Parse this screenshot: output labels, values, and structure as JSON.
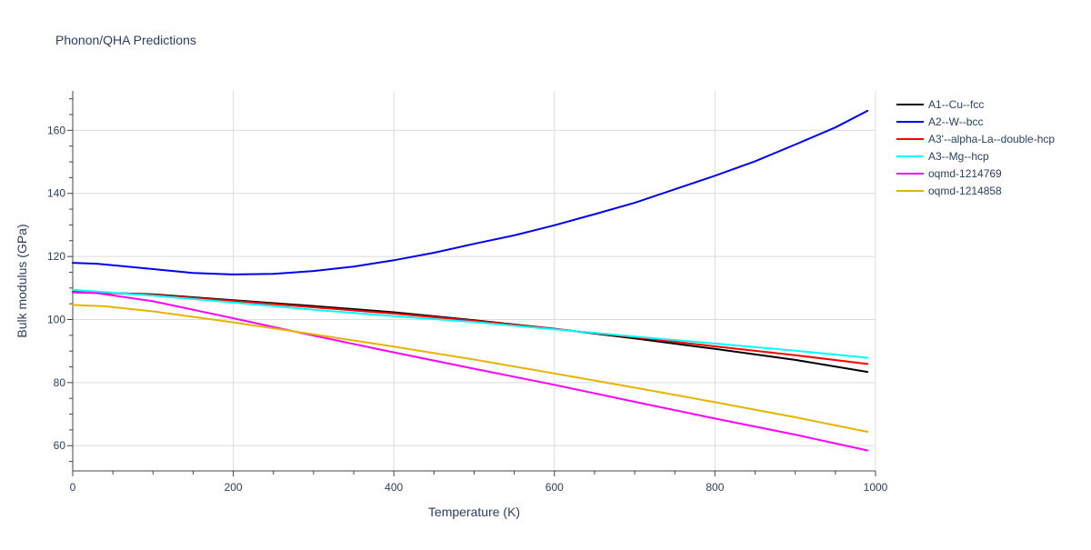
{
  "chart_data": {
    "type": "line",
    "title": "Phonon/QHA Predictions",
    "xlabel": "Temperature (K)",
    "ylabel": "Bulk modulus (GPa)",
    "xlim": [
      0,
      1000
    ],
    "ylim": [
      52,
      172.5
    ],
    "xticks": [
      0,
      200,
      400,
      600,
      800,
      1000
    ],
    "yticks": [
      60,
      80,
      100,
      120,
      140,
      160
    ],
    "grid": true,
    "legend_position": "top-right, outside plot",
    "series": [
      {
        "name": "A1--Cu--fcc",
        "color": "#000000",
        "x": [
          0,
          100,
          200,
          300,
          400,
          500,
          600,
          700,
          800,
          900,
          990
        ],
        "y": [
          108.8,
          108.0,
          106.1,
          104.3,
          102.3,
          99.8,
          97.1,
          94.0,
          90.7,
          87.2,
          83.4
        ]
      },
      {
        "name": "A2--W--bcc",
        "color": "#0000ee",
        "x": [
          0,
          30,
          100,
          150,
          200,
          250,
          300,
          350,
          400,
          450,
          500,
          550,
          600,
          650,
          700,
          750,
          800,
          850,
          900,
          950,
          990
        ],
        "y": [
          118.0,
          117.7,
          116.0,
          114.8,
          114.3,
          114.5,
          115.4,
          116.8,
          118.8,
          121.2,
          124.0,
          126.7,
          129.9,
          133.4,
          137.0,
          141.3,
          145.6,
          150.2,
          155.5,
          160.9,
          166.2
        ]
      },
      {
        "name": "A3'--alpha-La--double-hcp",
        "color": "#ff0000",
        "x": [
          0,
          100,
          200,
          300,
          400,
          500,
          600,
          700,
          800,
          900,
          990
        ],
        "y": [
          108.9,
          107.8,
          105.9,
          103.9,
          101.9,
          99.6,
          97.0,
          94.4,
          91.5,
          88.7,
          85.9
        ]
      },
      {
        "name": "A3--Mg--hcp",
        "color": "#00ffff",
        "x": [
          0,
          100,
          200,
          300,
          400,
          500,
          600,
          700,
          800,
          900,
          990
        ],
        "y": [
          109.4,
          107.6,
          105.4,
          103.1,
          101.1,
          99.2,
          96.9,
          94.6,
          92.4,
          90.1,
          87.9
        ]
      },
      {
        "name": "oqmd-1214769",
        "color": "#ff00ff",
        "x": [
          0,
          30,
          100,
          200,
          300,
          400,
          500,
          600,
          700,
          800,
          900,
          990
        ],
        "y": [
          108.6,
          108.4,
          105.8,
          100.4,
          94.9,
          89.6,
          84.4,
          79.3,
          73.9,
          68.6,
          63.5,
          58.5
        ]
      },
      {
        "name": "oqmd-1214858",
        "color": "#e6b400",
        "x": [
          0,
          40,
          100,
          200,
          300,
          400,
          500,
          600,
          700,
          800,
          900,
          990
        ],
        "y": [
          104.6,
          104.2,
          102.6,
          99.1,
          95.3,
          91.4,
          87.3,
          82.9,
          78.4,
          73.8,
          69.0,
          64.4
        ]
      }
    ]
  }
}
